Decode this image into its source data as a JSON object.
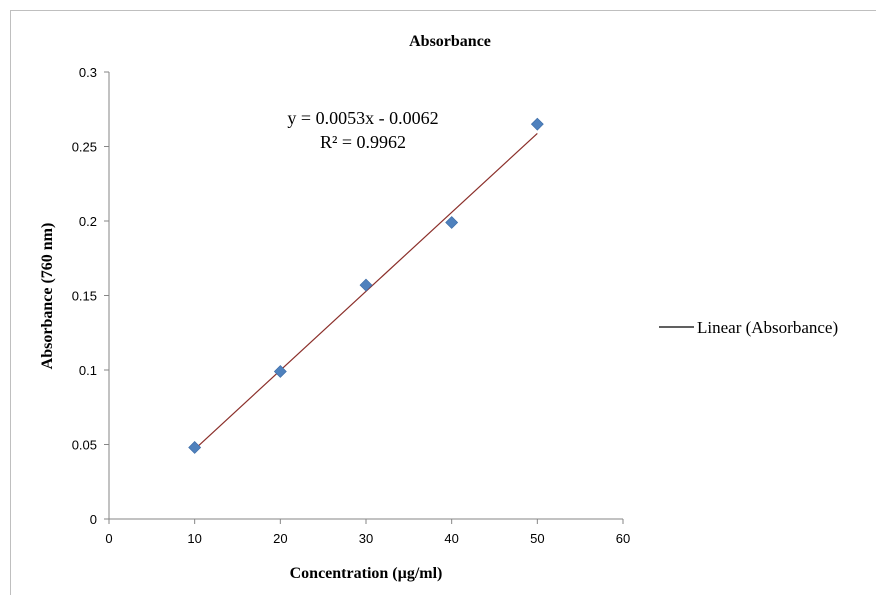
{
  "chart_data": {
    "type": "scatter",
    "title": "Absorbance",
    "xlabel": "Concentration  (µg/ml)",
    "ylabel": "Absorbance (760 nm)",
    "xlim": [
      0,
      60
    ],
    "ylim": [
      0,
      0.3
    ],
    "x_ticks": [
      "0",
      "10",
      "20",
      "30",
      "40",
      "50",
      "60"
    ],
    "y_ticks": [
      "0",
      "0.05",
      "0.1",
      "0.15",
      "0.2",
      "0.25",
      "0.3"
    ],
    "grid": false,
    "series": [
      {
        "marker": "diamond",
        "color": "#4f81bd",
        "x": [
          10,
          20,
          30,
          40,
          50
        ],
        "y": [
          0.048,
          0.099,
          0.157,
          0.199,
          0.265
        ]
      }
    ],
    "trendline": {
      "type": "linear",
      "slope": 0.0053,
      "intercept": -0.0062,
      "x_range": [
        10,
        50
      ],
      "color": "#8b2f2a",
      "equation": "y = 0.0053x - 0.0062",
      "r_squared": "R² = 0.9962"
    },
    "legend": {
      "position": "right",
      "entries": [
        "Linear (Absorbance)"
      ]
    }
  }
}
